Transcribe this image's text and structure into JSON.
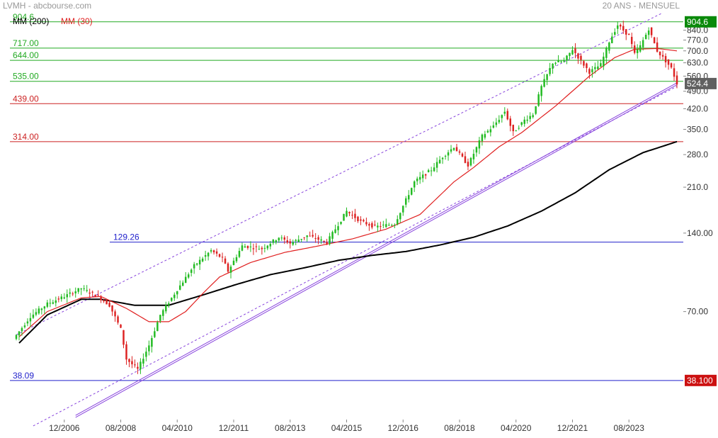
{
  "header": {
    "source": "LVMH - abcbourse.com",
    "period": "20 ANS - MENSUEL"
  },
  "legend": [
    {
      "label": "MM (200)",
      "color": "#000000"
    },
    {
      "label": "MM (30)",
      "color": "#e02020"
    }
  ],
  "colors": {
    "up": "#22bb22",
    "down": "#dd2222",
    "green_level": "#22aa22",
    "red_level": "#cc2222",
    "blue_level": "#2222cc",
    "channel": "#8844dd",
    "ma200": "#000000",
    "ma30": "#e02020"
  },
  "chart_data": {
    "type": "candlestick",
    "title": "LVMH",
    "y_scale": "log",
    "ylim": [
      30,
      980
    ],
    "xlim": [
      "2005-06",
      "2025-02"
    ],
    "x_ticks": [
      {
        "label": "12/2006",
        "date": "2006-12"
      },
      {
        "label": "08/2008",
        "date": "2008-08"
      },
      {
        "label": "04/2010",
        "date": "2010-04"
      },
      {
        "label": "12/2011",
        "date": "2011-12"
      },
      {
        "label": "08/2013",
        "date": "2013-08"
      },
      {
        "label": "04/2015",
        "date": "2015-04"
      },
      {
        "label": "12/2016",
        "date": "2016-12"
      },
      {
        "label": "08/2018",
        "date": "2018-08"
      },
      {
        "label": "04/2020",
        "date": "2020-04"
      },
      {
        "label": "12/2021",
        "date": "2021-12"
      },
      {
        "label": "08/2023",
        "date": "2023-08"
      }
    ],
    "y_ticks": [
      {
        "label": "840.0",
        "value": 840
      },
      {
        "label": "770.0",
        "value": 770
      },
      {
        "label": "700.0",
        "value": 700
      },
      {
        "label": "630.0",
        "value": 630
      },
      {
        "label": "560.0",
        "value": 560
      },
      {
        "label": "490.0",
        "value": 490
      },
      {
        "label": "420.0",
        "value": 420
      },
      {
        "label": "350.0",
        "value": 350
      },
      {
        "label": "280.0",
        "value": 280
      },
      {
        "label": "210.0",
        "value": 210
      },
      {
        "label": "140.00",
        "value": 140
      },
      {
        "label": "70.00",
        "value": 70
      }
    ],
    "levels": [
      {
        "label": "904.6",
        "value": 904.6,
        "color": "green",
        "side": "left"
      },
      {
        "label": "717.00",
        "value": 717,
        "color": "green",
        "side": "left"
      },
      {
        "label": "644.00",
        "value": 644,
        "color": "green",
        "side": "left"
      },
      {
        "label": "535.00",
        "value": 535,
        "color": "green",
        "side": "left"
      },
      {
        "label": "439.00",
        "value": 439,
        "color": "red",
        "side": "left"
      },
      {
        "label": "314.00",
        "value": 314,
        "color": "red",
        "side": "left"
      },
      {
        "label": "129.26",
        "value": 129.26,
        "color": "blue",
        "side": "mid"
      },
      {
        "label": "38.09",
        "value": 38.09,
        "color": "blue",
        "side": "left"
      }
    ],
    "price_badges": [
      {
        "label": "904.6",
        "value": 904.6,
        "bg": "#0a8a0a"
      },
      {
        "label": "524.4",
        "value": 524.4,
        "bg": "#606060"
      },
      {
        "label": "38.100",
        "value": 38.1,
        "bg": "#cc1111"
      }
    ],
    "channel_lines": [
      {
        "style": "dashed",
        "from": [
          "2005-07",
          57
        ],
        "to": [
          "2024-08",
          980
        ]
      },
      {
        "style": "solid",
        "from": [
          "2007-04",
          28
        ],
        "to": [
          "2025-01",
          528
        ]
      },
      {
        "style": "solid",
        "from": [
          "2007-04",
          27.5
        ],
        "to": [
          "2025-01",
          519
        ]
      },
      {
        "style": "dashed",
        "from": [
          "2006-01",
          25.5
        ],
        "to": [
          "2025-01",
          512
        ]
      }
    ],
    "price_path": [
      [
        "2005-06",
        55
      ],
      [
        "2005-12",
        67
      ],
      [
        "2006-06",
        75
      ],
      [
        "2006-12",
        80
      ],
      [
        "2007-06",
        86
      ],
      [
        "2007-12",
        80
      ],
      [
        "2008-04",
        74
      ],
      [
        "2008-08",
        60
      ],
      [
        "2008-10",
        46
      ],
      [
        "2009-02",
        42
      ],
      [
        "2009-06",
        52
      ],
      [
        "2009-10",
        68
      ],
      [
        "2010-04",
        85
      ],
      [
        "2010-10",
        105
      ],
      [
        "2011-04",
        120
      ],
      [
        "2011-08",
        112
      ],
      [
        "2011-10",
        100
      ],
      [
        "2012-03",
        125
      ],
      [
        "2012-10",
        122
      ],
      [
        "2013-04",
        135
      ],
      [
        "2013-08",
        128
      ],
      [
        "2014-02",
        137
      ],
      [
        "2014-09",
        129
      ],
      [
        "2015-04",
        170
      ],
      [
        "2015-09",
        155
      ],
      [
        "2016-02",
        148
      ],
      [
        "2016-09",
        152
      ],
      [
        "2017-04",
        220
      ],
      [
        "2017-10",
        245
      ],
      [
        "2018-02",
        275
      ],
      [
        "2018-06",
        300
      ],
      [
        "2018-11",
        255
      ],
      [
        "2019-04",
        330
      ],
      [
        "2019-08",
        360
      ],
      [
        "2019-12",
        410
      ],
      [
        "2020-03",
        340
      ],
      [
        "2020-07",
        380
      ],
      [
        "2020-10",
        400
      ],
      [
        "2021-01",
        510
      ],
      [
        "2021-05",
        630
      ],
      [
        "2021-09",
        640
      ],
      [
        "2021-12",
        710
      ],
      [
        "2022-03",
        640
      ],
      [
        "2022-06",
        580
      ],
      [
        "2022-10",
        620
      ],
      [
        "2023-01",
        760
      ],
      [
        "2023-04",
        880
      ],
      [
        "2023-08",
        800
      ],
      [
        "2023-10",
        680
      ],
      [
        "2023-12",
        730
      ],
      [
        "2024-03",
        850
      ],
      [
        "2024-06",
        700
      ],
      [
        "2024-09",
        640
      ],
      [
        "2024-11",
        600
      ],
      [
        "2025-01",
        524.4
      ]
    ],
    "ma30_path": [
      [
        "2005-08",
        56
      ],
      [
        "2006-06",
        70
      ],
      [
        "2007-06",
        79
      ],
      [
        "2008-01",
        80
      ],
      [
        "2008-10",
        72
      ],
      [
        "2009-06",
        64
      ],
      [
        "2010-01",
        64
      ],
      [
        "2010-07",
        70
      ],
      [
        "2011-01",
        82
      ],
      [
        "2011-07",
        95
      ],
      [
        "2012-06",
        108
      ],
      [
        "2013-06",
        118
      ],
      [
        "2014-06",
        125
      ],
      [
        "2015-06",
        133
      ],
      [
        "2016-06",
        145
      ],
      [
        "2017-06",
        165
      ],
      [
        "2018-06",
        220
      ],
      [
        "2019-01",
        250
      ],
      [
        "2019-10",
        300
      ],
      [
        "2020-06",
        340
      ],
      [
        "2021-06",
        430
      ],
      [
        "2022-06",
        560
      ],
      [
        "2023-03",
        660
      ],
      [
        "2023-10",
        710
      ],
      [
        "2024-06",
        715
      ],
      [
        "2025-01",
        700
      ]
    ],
    "ma200_path": [
      [
        "2005-08",
        53
      ],
      [
        "2006-06",
        68
      ],
      [
        "2007-06",
        78
      ],
      [
        "2008-01",
        78
      ],
      [
        "2009-01",
        74
      ],
      [
        "2010-01",
        74
      ],
      [
        "2011-01",
        81
      ],
      [
        "2012-01",
        89
      ],
      [
        "2013-01",
        97
      ],
      [
        "2014-01",
        103
      ],
      [
        "2015-01",
        110
      ],
      [
        "2016-01",
        115
      ],
      [
        "2017-01",
        119
      ],
      [
        "2018-01",
        126
      ],
      [
        "2019-01",
        135
      ],
      [
        "2020-01",
        149
      ],
      [
        "2021-01",
        170
      ],
      [
        "2022-01",
        200
      ],
      [
        "2023-01",
        245
      ],
      [
        "2024-01",
        285
      ],
      [
        "2025-01",
        314
      ]
    ]
  }
}
